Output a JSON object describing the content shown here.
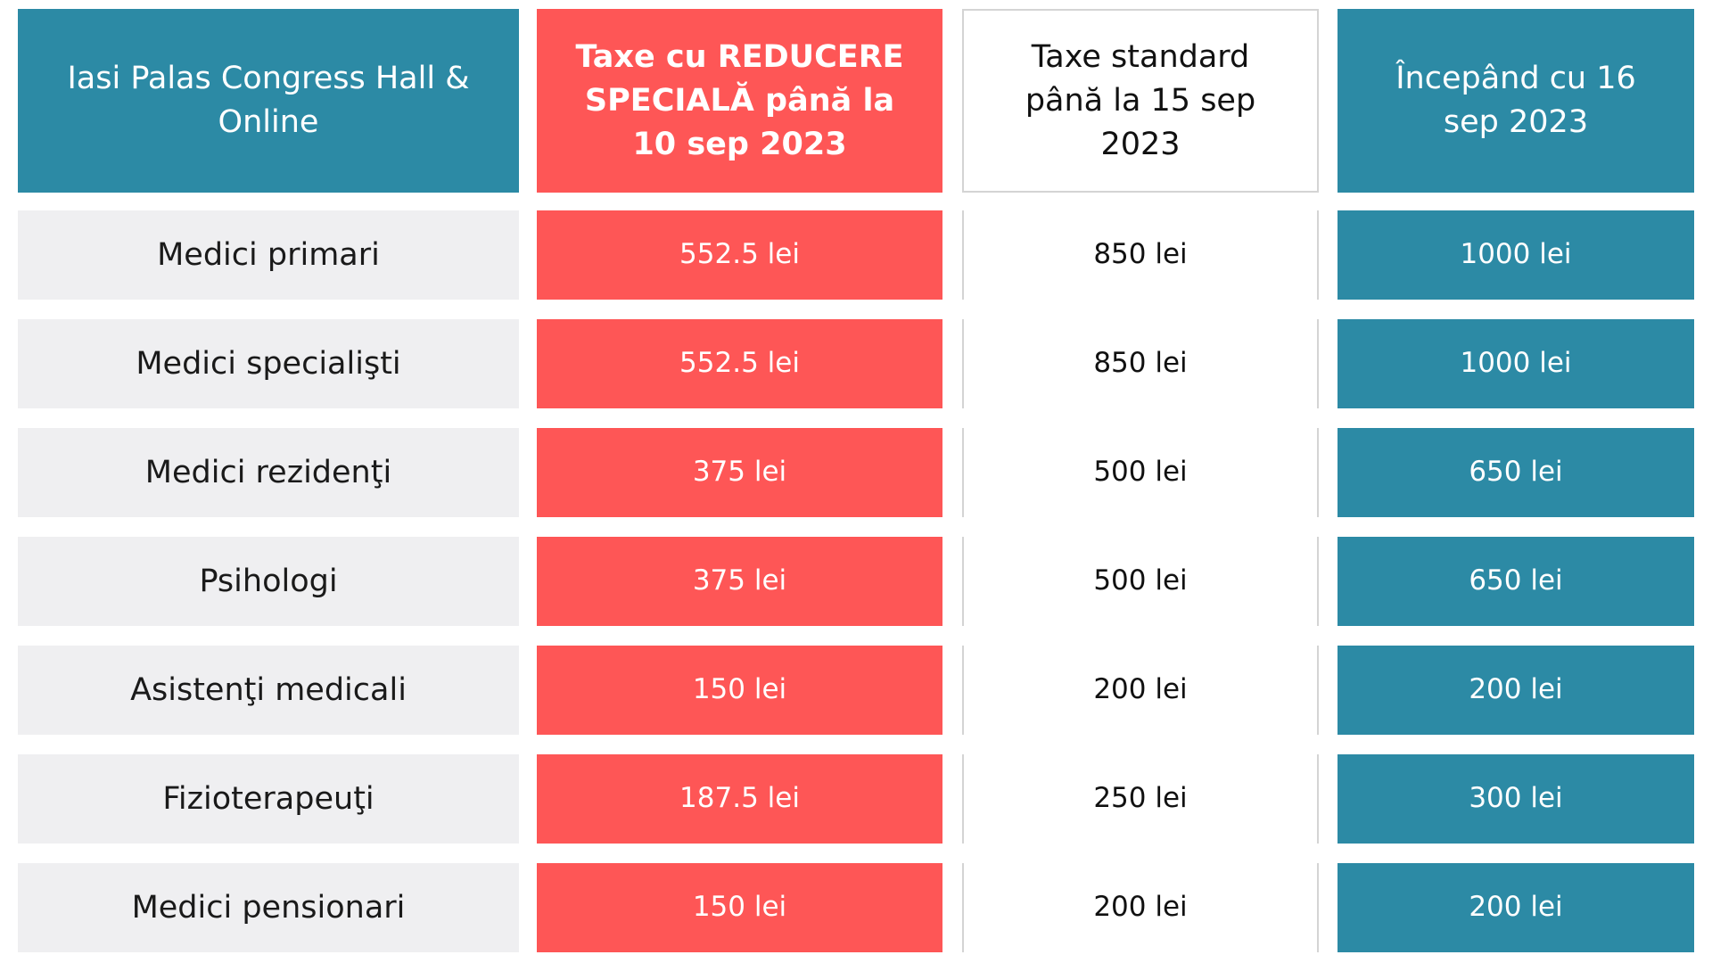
{
  "table": {
    "header": [
      "Iasi Palas Congress Hall & Online",
      "Taxe cu REDUCERE SPECIALĂ până la 10 sep 2023",
      "Taxe standard până la 15 sep 2023",
      "Începând cu 16 sep 2023"
    ],
    "rows": [
      [
        "Medici primari",
        "552.5 lei",
        "850 lei",
        "1000 lei"
      ],
      [
        "Medici specialişti",
        "552.5 lei",
        "850 lei",
        "1000 lei"
      ],
      [
        "Medici rezidenţi",
        "375 lei",
        "500 lei",
        "650 lei"
      ],
      [
        "Psihologi",
        "375 lei",
        "500 lei",
        "650 lei"
      ],
      [
        "Asistenţi medicali",
        "150 lei",
        "200 lei",
        "200 lei"
      ],
      [
        "Fizioterapeuţi",
        "187.5 lei",
        "250 lei",
        "300 lei"
      ],
      [
        "Medici pensionari",
        "150 lei",
        "200 lei",
        "200 lei"
      ]
    ]
  }
}
